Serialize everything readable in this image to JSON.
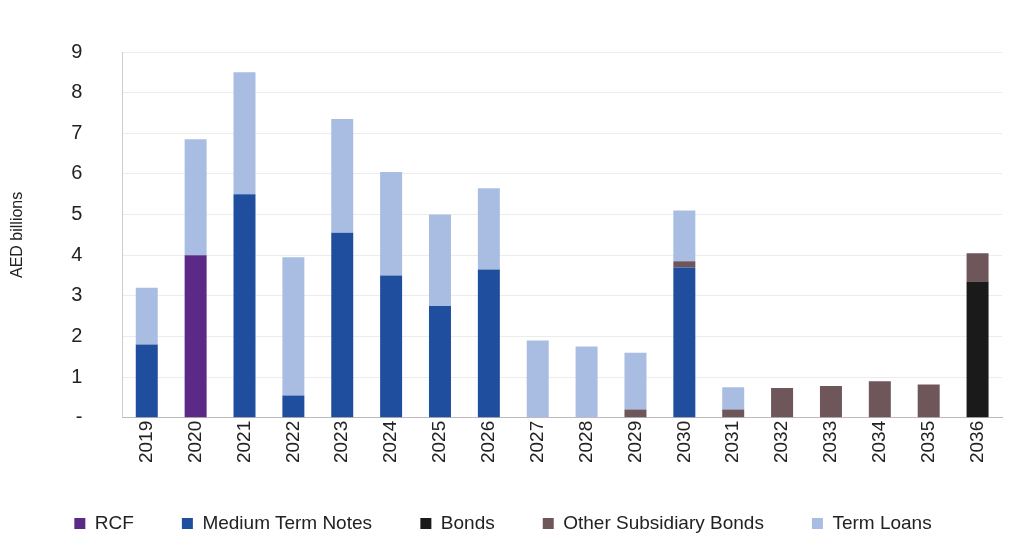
{
  "chart_data": {
    "type": "bar",
    "stacked": true,
    "ylabel": "AED billions",
    "categories": [
      "2019",
      "2020",
      "2021",
      "2022",
      "2023",
      "2024",
      "2025",
      "2026",
      "2027",
      "2028",
      "2029",
      "2030",
      "2031",
      "2032",
      "2033",
      "2034",
      "2035",
      "2036"
    ],
    "series": [
      {
        "name": "RCF",
        "color": "#5b2a86",
        "values": [
          null,
          4.0,
          null,
          null,
          null,
          null,
          null,
          null,
          null,
          null,
          null,
          null,
          null,
          null,
          null,
          null,
          null,
          null
        ]
      },
      {
        "name": "Medium Term Notes",
        "color": "#1f4e9e",
        "values": [
          1.8,
          null,
          5.5,
          0.55,
          4.55,
          3.5,
          2.75,
          3.65,
          null,
          null,
          null,
          3.7,
          null,
          null,
          null,
          null,
          null,
          null
        ]
      },
      {
        "name": "Bonds",
        "color": "#1a1a1a",
        "values": [
          null,
          null,
          null,
          null,
          null,
          null,
          null,
          null,
          null,
          null,
          null,
          null,
          null,
          null,
          null,
          null,
          null,
          3.35
        ]
      },
      {
        "name": "Other Subsidiary Bonds",
        "color": "#6e565a",
        "values": [
          null,
          null,
          null,
          null,
          null,
          null,
          null,
          null,
          null,
          null,
          0.2,
          0.15,
          0.2,
          0.73,
          0.78,
          0.9,
          0.82,
          0.7
        ]
      },
      {
        "name": "Term Loans",
        "color": "#a9bde3",
        "values": [
          1.4,
          2.85,
          3.0,
          3.4,
          2.8,
          2.55,
          2.25,
          2.0,
          1.9,
          1.75,
          1.4,
          1.25,
          0.55,
          null,
          null,
          null,
          null,
          null
        ]
      }
    ],
    "ylim": [
      0,
      9
    ],
    "yticks": [
      {
        "value": 0,
        "label": "-"
      },
      1,
      2,
      3,
      4,
      5,
      6,
      7,
      8,
      9
    ],
    "grid": "y",
    "legend": "bottom"
  }
}
